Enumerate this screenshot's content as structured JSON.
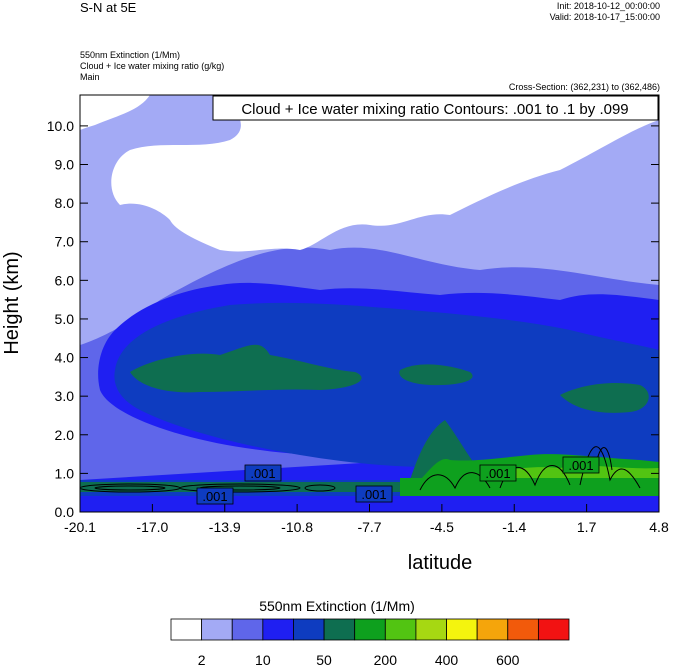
{
  "header": {
    "title": "S-N at 5E",
    "init": "Init: 2018-10-12_00:00:00",
    "valid": "Valid: 2018-10-17_15:00:00",
    "var1": "550nm Extinction   (1/Mm)",
    "var2": "Cloud + Ice water mixing ratio   (g/kg)",
    "var3": "Main",
    "cross_section": "Cross-Section: (362,231) to (362,486)"
  },
  "colors": {
    "levels": [
      "#ffffff",
      "#a3aaf5",
      "#5f66ea",
      "#1f1ff2",
      "#0e3cc0",
      "#0e6e50",
      "#0ea01e",
      "#52c412",
      "#a6d812",
      "#f4f40e",
      "#f5a50b",
      "#f25a0b",
      "#f21212"
    ]
  },
  "chart_data": {
    "type": "heatmap",
    "title": "Cloud + Ice water mixing ratio Contours: .001 to .1 by .099",
    "xlabel": "latitude",
    "ylabel": "Height (km)",
    "x_ticks": [
      "-20.1",
      "-17.0",
      "-13.9",
      "-10.8",
      "-7.7",
      "-4.5",
      "-1.4",
      "1.7",
      "4.8"
    ],
    "y_ticks": [
      "0.0",
      "1.0",
      "2.0",
      "3.0",
      "4.0",
      "5.0",
      "6.0",
      "7.0",
      "8.0",
      "9.0",
      "10.0"
    ],
    "xlim": [
      -20.1,
      4.8
    ],
    "ylim": [
      0,
      10.8
    ],
    "colorbar": {
      "title": "550nm Extinction  (1/Mm)",
      "labels": [
        "2",
        "10",
        "50",
        "200",
        "400",
        "600"
      ]
    },
    "contour_labels": [
      ".001",
      ".001",
      ".001",
      ".001",
      ".001"
    ]
  }
}
